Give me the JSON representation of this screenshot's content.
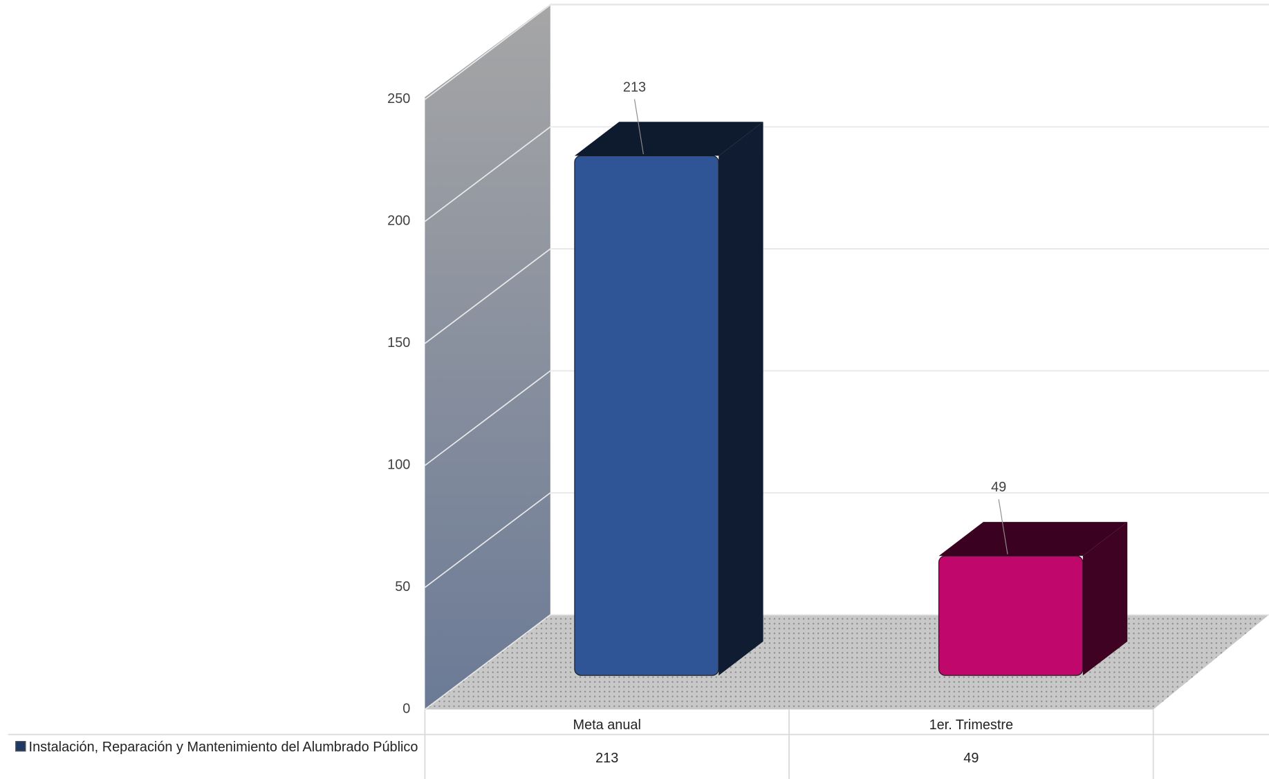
{
  "chart_data": {
    "type": "bar3d",
    "categories": [
      "Meta anual",
      "1er. Trimestre"
    ],
    "series": [
      {
        "name": "Instalación, Reparación y Mantenimiento del Alumbrado Público",
        "color": "#1f3864",
        "colors": [
          "#2f5597",
          "#c0076b"
        ],
        "values": [
          213,
          49
        ]
      }
    ],
    "ylim": [
      0,
      250
    ],
    "yticks": [
      0,
      50,
      100,
      150,
      200,
      250
    ],
    "grid": true,
    "data_table": true
  }
}
